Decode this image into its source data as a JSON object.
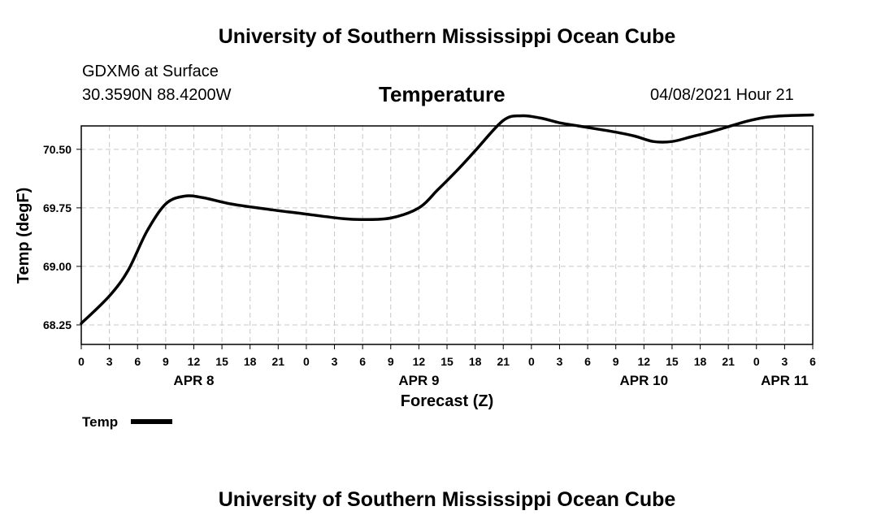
{
  "page": {
    "title_top": "University of Southern Mississippi Ocean Cube",
    "title_bottom": "University of Southern Mississippi Ocean Cube",
    "station": "GDXM6 at Surface",
    "coords": "30.3590N  88.4200W",
    "datetime": "04/08/2021 Hour 21"
  },
  "legend": {
    "label": "Temp"
  },
  "colors": {
    "line": "#000000",
    "grid": "#c8c8c8",
    "axis": "#000000"
  },
  "chart_data": {
    "type": "line",
    "title": "Temperature",
    "xlabel": "Forecast (Z)",
    "ylabel": "Temp (degF)",
    "xlim": [
      0,
      78
    ],
    "ylim": [
      68.0,
      70.8
    ],
    "y_ticks": [
      68.25,
      69.0,
      69.75,
      70.5
    ],
    "y_tick_labels": [
      "68.25",
      "69.00",
      "69.75",
      "70.50"
    ],
    "x_ticks": [
      0,
      3,
      6,
      9,
      12,
      15,
      18,
      21,
      24,
      27,
      30,
      33,
      36,
      39,
      42,
      45,
      48,
      51,
      54,
      57,
      60,
      63,
      66,
      69,
      72,
      75,
      78
    ],
    "x_tick_labels": [
      "0",
      "3",
      "6",
      "9",
      "12",
      "15",
      "18",
      "21",
      "0",
      "3",
      "6",
      "9",
      "12",
      "15",
      "18",
      "21",
      "0",
      "3",
      "6",
      "9",
      "12",
      "15",
      "18",
      "21",
      "0",
      "3",
      "6"
    ],
    "day_labels": [
      {
        "label": "APR 8",
        "x": 12
      },
      {
        "label": "APR 9",
        "x": 36
      },
      {
        "label": "APR 10",
        "x": 60
      },
      {
        "label": "APR 11",
        "x": 75
      }
    ],
    "grid": true,
    "series": [
      {
        "name": "Temp",
        "x": [
          0,
          3,
          5,
          7,
          9,
          11,
          13,
          16,
          20,
          24,
          28,
          30,
          33,
          36,
          38,
          40,
          42,
          45,
          47,
          49,
          51,
          53,
          55,
          57,
          59,
          61,
          63,
          65,
          67,
          69,
          71,
          73,
          75,
          78
        ],
        "values": [
          68.27,
          68.62,
          68.95,
          69.45,
          69.8,
          69.9,
          69.88,
          69.8,
          69.73,
          69.67,
          69.61,
          69.6,
          69.62,
          69.75,
          69.98,
          70.22,
          70.48,
          70.87,
          70.93,
          70.9,
          70.84,
          70.8,
          70.76,
          70.72,
          70.67,
          70.6,
          70.6,
          70.66,
          70.72,
          70.79,
          70.86,
          70.91,
          70.93,
          70.94
        ]
      }
    ]
  }
}
